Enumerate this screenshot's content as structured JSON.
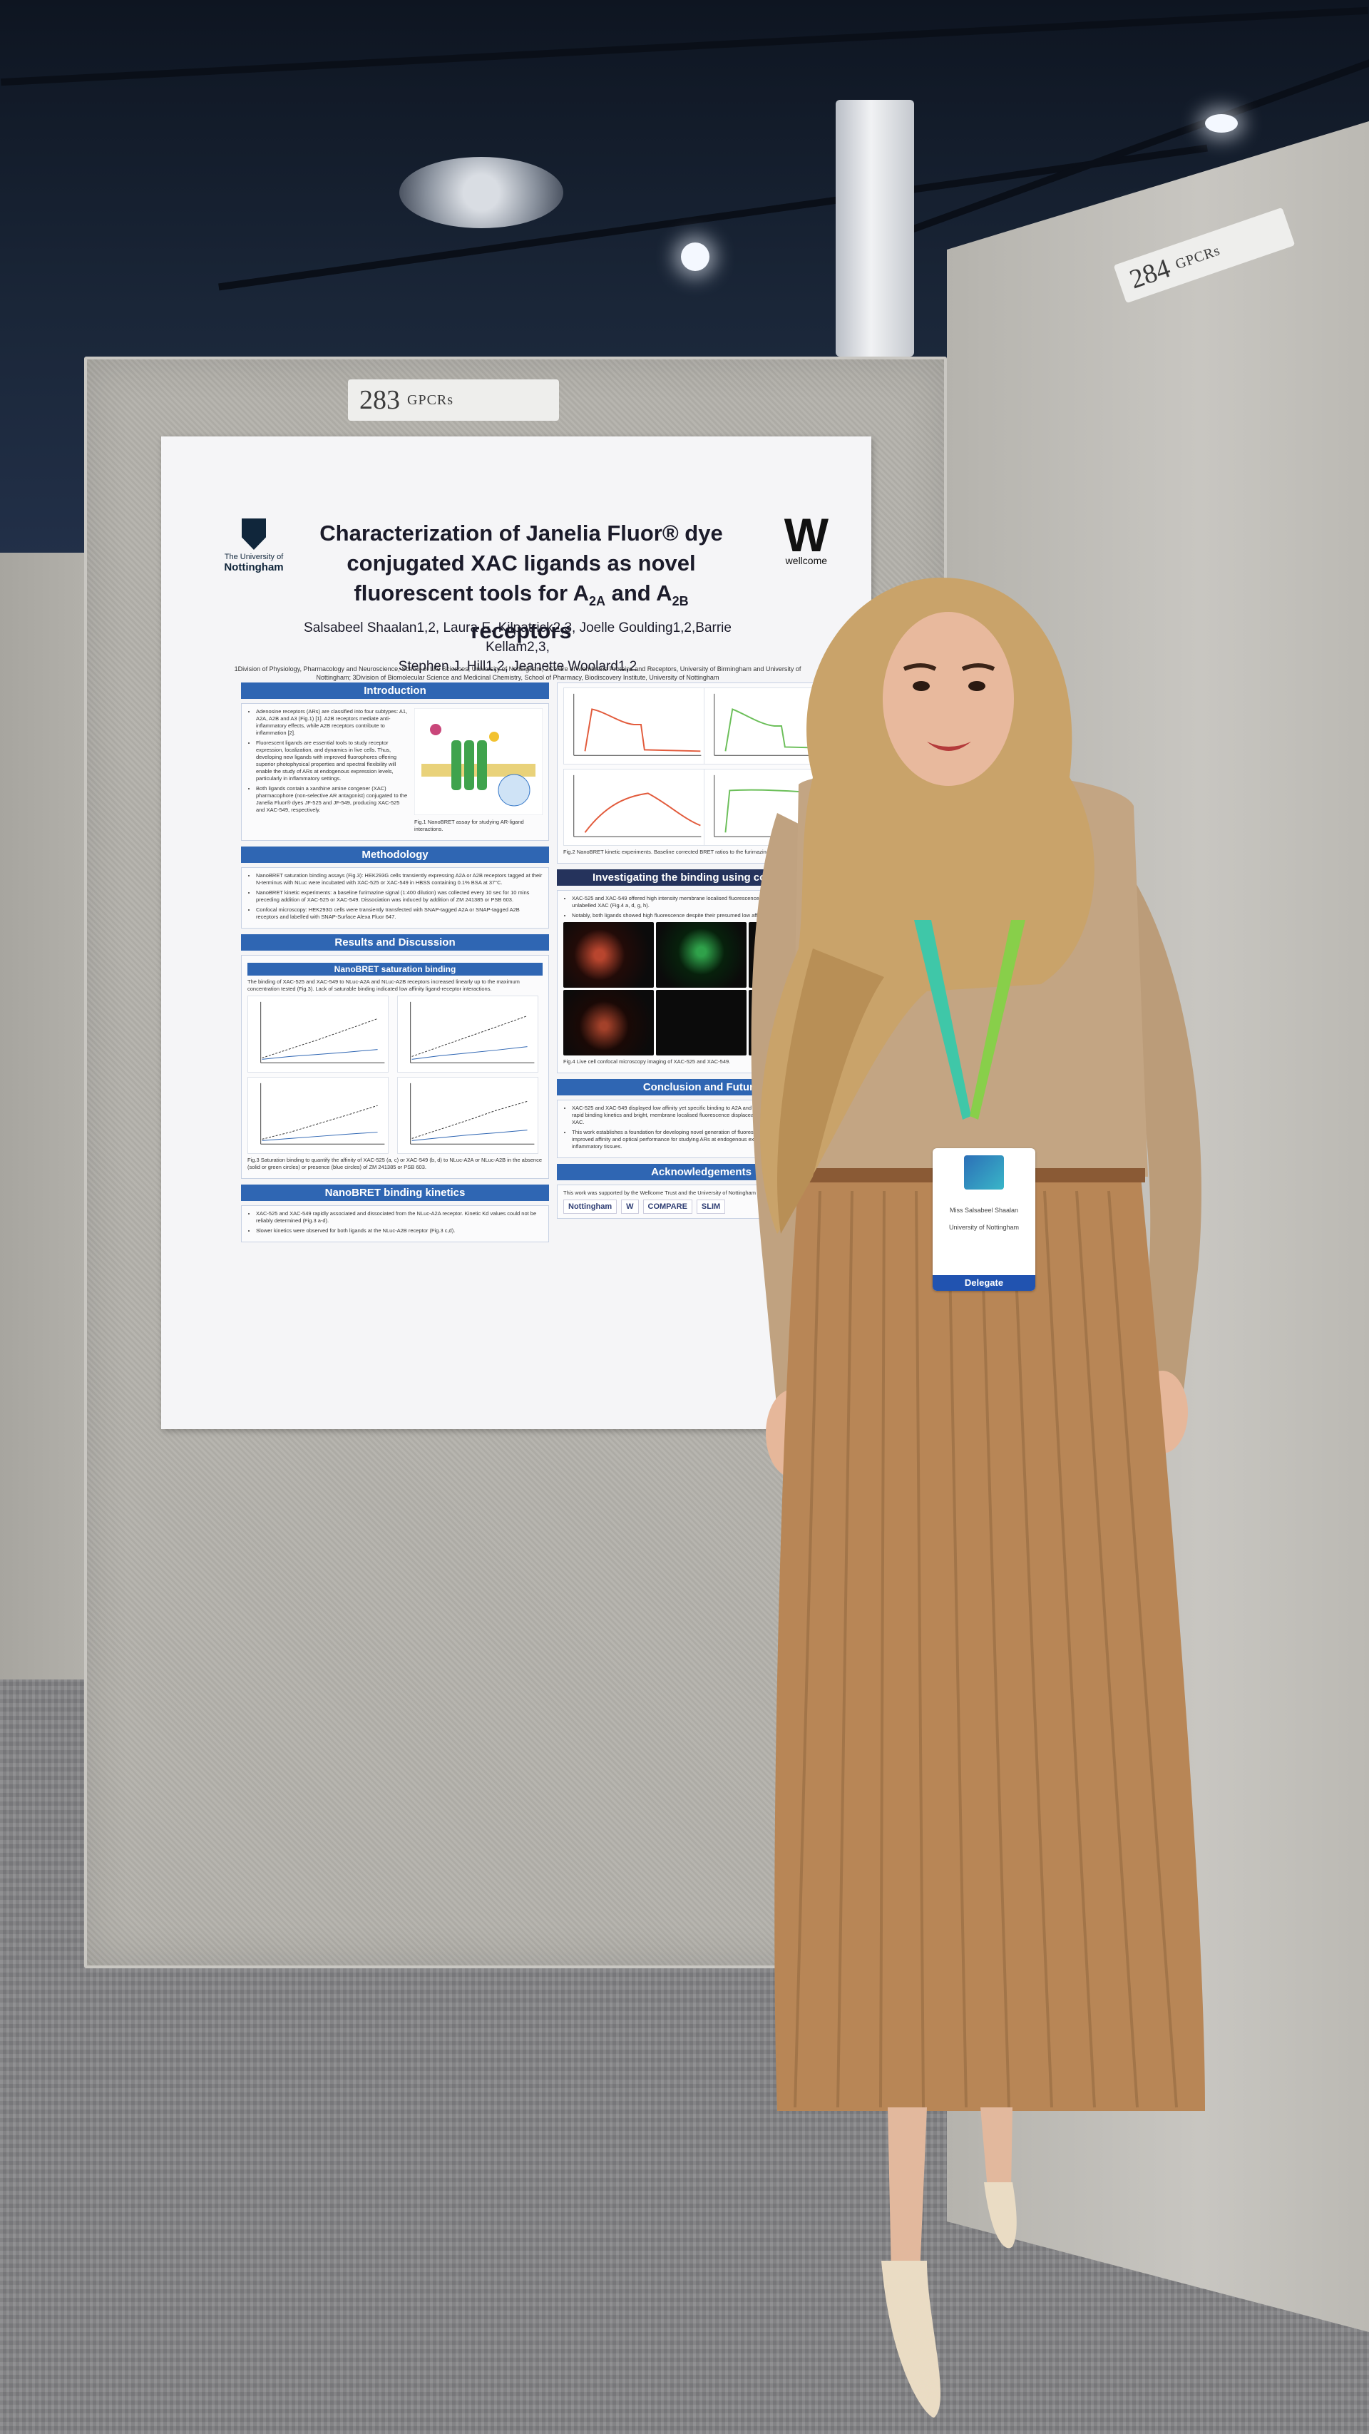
{
  "booth_tags": {
    "main": {
      "number": "283",
      "label": "GPCRs"
    },
    "right": {
      "number": "284",
      "label": "GPCRs"
    }
  },
  "poster": {
    "logo_left": {
      "line1": "The University of",
      "line2": "Nottingham"
    },
    "logo_right": {
      "mark": "W",
      "text": "wellcome"
    },
    "title_line1": "Characterization of Janelia Fluor® dye",
    "title_line2": "conjugated XAC ligands as novel",
    "title_line3": "fluorescent tools for A",
    "title_sub_a": "2A",
    "title_and": " and A",
    "title_sub_b": "2B",
    "title_end": " receptors",
    "authors_line1": "Salsabeel Shaalan1,2, Laura E. Kilpatrick2,3, Joelle Goulding1,2,Barrie Kellam2,3,",
    "authors_line2": "Stephen J. Hill1,2, Jeanette Woolard1,2",
    "affiliations": "1Division of Physiology, Pharmacology and Neuroscience, School of Life Sciences, University of Nottingham; 2Centre of Membrane Proteins and Receptors, University of Birmingham and University of Nottingham; 3Division of Biomolecular Science and Medicinal Chemistry, School of Pharmacy, Biodiscovery Institute, University of Nottingham",
    "sections": {
      "introduction": "Introduction",
      "methodology": "Methodology",
      "results": "Results and Discussion",
      "nanobret_sat": "NanoBRET saturation binding",
      "nanobret_kin": "NanoBRET binding kinetics",
      "confocal": "Investigating the binding using confocal m",
      "conclusion": "Conclusion and Future",
      "acknowledgements": "Acknowledgements"
    },
    "intro_text": "Adenosine receptors (ARs) are classified into four subtypes: A1, A2A, A2B and A3 (Fig.1) [1]. A2B receptors mediate anti-inflammatory effects, while A2B receptors contribute to inflammation [2].",
    "intro_text2": "Fluorescent ligands are essential tools to study receptor expression, localization, and dynamics in live cells. Thus, developing new ligands with improved fluorophores offering superior photophysical properties and spectral flexibility will enable the study of ARs at endogenous expression levels, particularly in inflammatory settings.",
    "intro_text3": "Both ligands contain a xanthine amine congener (XAC) pharmacophore (non-selective AR antagonist) conjugated to the Janelia Fluor® dyes JF-525 and JF-549, producing XAC-525 and XAC-549, respectively.",
    "fig1_caption": "Fig.1 NanoBRET assay for studying AR-ligand interactions.",
    "method_text": "NanoBRET saturation binding assays (Fig.3): HEK293G cells transiently expressing A2A or A2B receptors tagged at their N-terminus with NLuc were incubated with XAC-525 or XAC-549 in HBSS containing 0.1% BSA at 37°C.",
    "method_text2": "NanoBRET kinetic experiments: a baseline furimazine signal (1:400 dilution) was collected every 10 sec for 10 mins preceding addition of XAC-525 or XAC-549. Dissociation was induced by addition of ZM 241385 or PSB 603.",
    "method_text3": "Confocal microscopy: HEK293G cells were transiently transfected with SNAP-tagged A2A or SNAP-tagged A2B receptors and labelled with SNAP-Surface Alexa Fluor 647.",
    "sat_text": "The binding of XAC-525 and XAC-549 to NLuc-A2A and NLuc-A2B receptors increased linearly up to the maximum concentration tested (Fig.3). Lack of saturable binding indicated low affinity ligand-receptor interactions.",
    "sat_caption": "Fig.3 Saturation binding to quantify the affinity of XAC-525 (a, c) or XAC-549 (b, d) to NLuc-A2A or NLuc-A2B in the absence (solid or green circles) or presence (blue circles) of ZM 241385 or PSB 603.",
    "kin_text": "XAC-525 and XAC-549 rapidly associated and dissociated from the NLuc-A2A receptor. Kinetic Kd values could not be reliably determined (Fig.3 a-d).",
    "kin_text2": "Slower kinetics were observed for both ligands at the NLuc-A2B receptor (Fig.3 c,d).",
    "fig2_caption": "Fig.2 NanoBRET kinetic experiments. Baseline corrected BRET ratios to the furimazine",
    "confocal_text": "XAC-525 and XAC-549 offered high intensity membrane localised fluorescence which was displaceable by unlabelled XAC (Fig.4 a, d, g, h).",
    "confocal_text2": "Notably, both ligands showed high fluorescence despite their presumed low affinities.",
    "fig4_caption": "Fig.4 Live cell confocal microscopy imaging of XAC-525 and XAC-549.",
    "conclusion_text": "XAC-525 and XAC-549 displayed low affinity yet specific binding to A2A and A2B receptors, characterised by rapid binding kinetics and bright, membrane localised fluorescence displaceable by the unlabelled antagonist XAC.",
    "conclusion_text2": "This work establishes a foundation for developing novel generation of fluorescent conjugated probes with improved affinity and optical performance for studying ARs at endogenous expression levels and within inflammatory tissues.",
    "ack_text": "This work was supported by the Wellcome Trust and the University of Nottingham School of Life Sciences.",
    "ack_logos": [
      "Nottingham",
      "W",
      "COMPARE",
      "SLIM"
    ]
  },
  "badge": {
    "name": "Miss Salsabeel Shaalan",
    "org": "University of Nottingham",
    "role": "Delegate"
  },
  "colors": {
    "poster_header": "#2f66b3",
    "poster_dark_header": "#25335c",
    "hijab": "#c9a36a",
    "top": "#c0a280",
    "skirt": "#b88656",
    "lanyard": "#3fc7a8",
    "badge_band": "#2153b0"
  }
}
